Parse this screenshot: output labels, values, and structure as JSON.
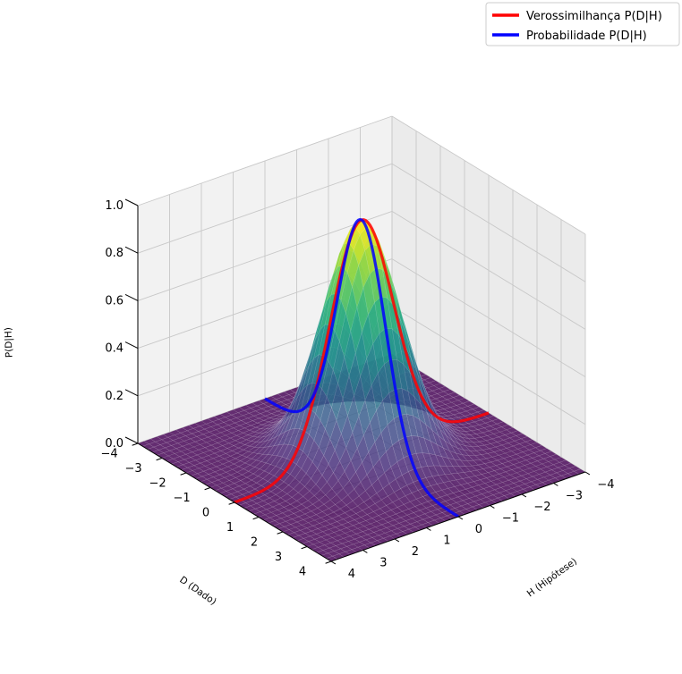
{
  "chart_data": {
    "type": "surface3d",
    "title": "",
    "function": "exp(-(D^2 + H^2)/2)",
    "xlabel": "D (Dado)",
    "ylabel": "H (Hipótese)",
    "zlabel": "P(D|H)",
    "xlim": [
      -4,
      4
    ],
    "ylim": [
      -4,
      4
    ],
    "zlim": [
      0,
      1
    ],
    "x_ticks": [
      "−4",
      "−3",
      "−2",
      "−1",
      "0",
      "1",
      "2",
      "3",
      "4"
    ],
    "y_ticks": [
      "−4",
      "−3",
      "−2",
      "−1",
      "0",
      "1",
      "2",
      "3",
      "4"
    ],
    "z_ticks": [
      "0.0",
      "0.2",
      "0.4",
      "0.6",
      "0.8",
      "1.0"
    ],
    "grid": true,
    "colormap": "viridis",
    "legend_position": "top-right",
    "series": [
      {
        "name": "Verossimilhança P(D|H)",
        "color": "#ff0000",
        "fixed": "D = 0",
        "varies": "H"
      },
      {
        "name": "Probabilidade P(D|H)",
        "color": "#0000ff",
        "fixed": "H = 0",
        "varies": "D"
      }
    ]
  }
}
